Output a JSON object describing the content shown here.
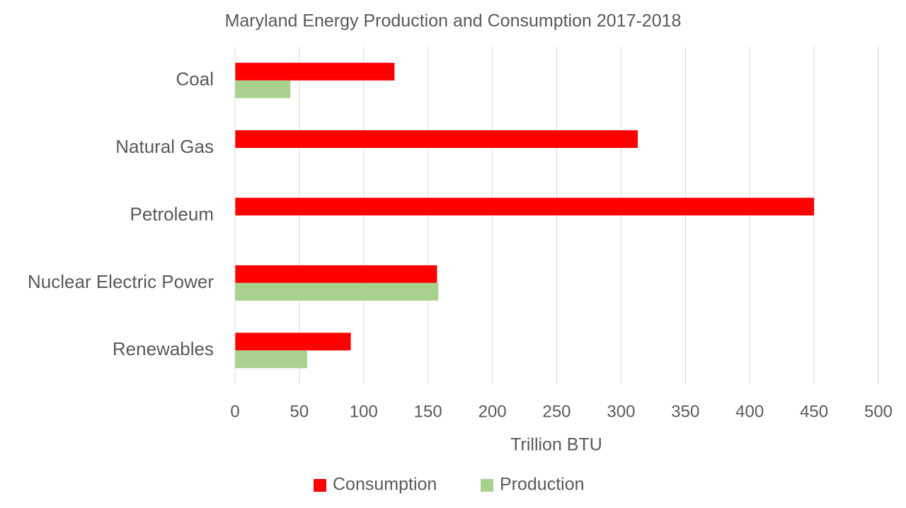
{
  "chart_data": {
    "type": "hbar",
    "title": "Maryland Energy Production and Consumption 2017-2018",
    "x_label": "Trillion BTU",
    "categories": [
      "Coal",
      "Natural Gas",
      "Petroleum",
      "Nuclear Electric Power",
      "Renewables"
    ],
    "series": [
      {
        "name": "Consumption",
        "color": "#ff0000",
        "values": [
          124,
          313,
          450,
          157,
          90
        ]
      },
      {
        "name": "Production",
        "color": "#a9d18e",
        "values": [
          43,
          0,
          0,
          158,
          56
        ]
      }
    ],
    "xlim": [
      0,
      500
    ],
    "xticks": [
      0,
      50,
      100,
      150,
      200,
      250,
      300,
      350,
      400,
      450,
      500
    ],
    "grid": true,
    "legend": "bottom"
  }
}
